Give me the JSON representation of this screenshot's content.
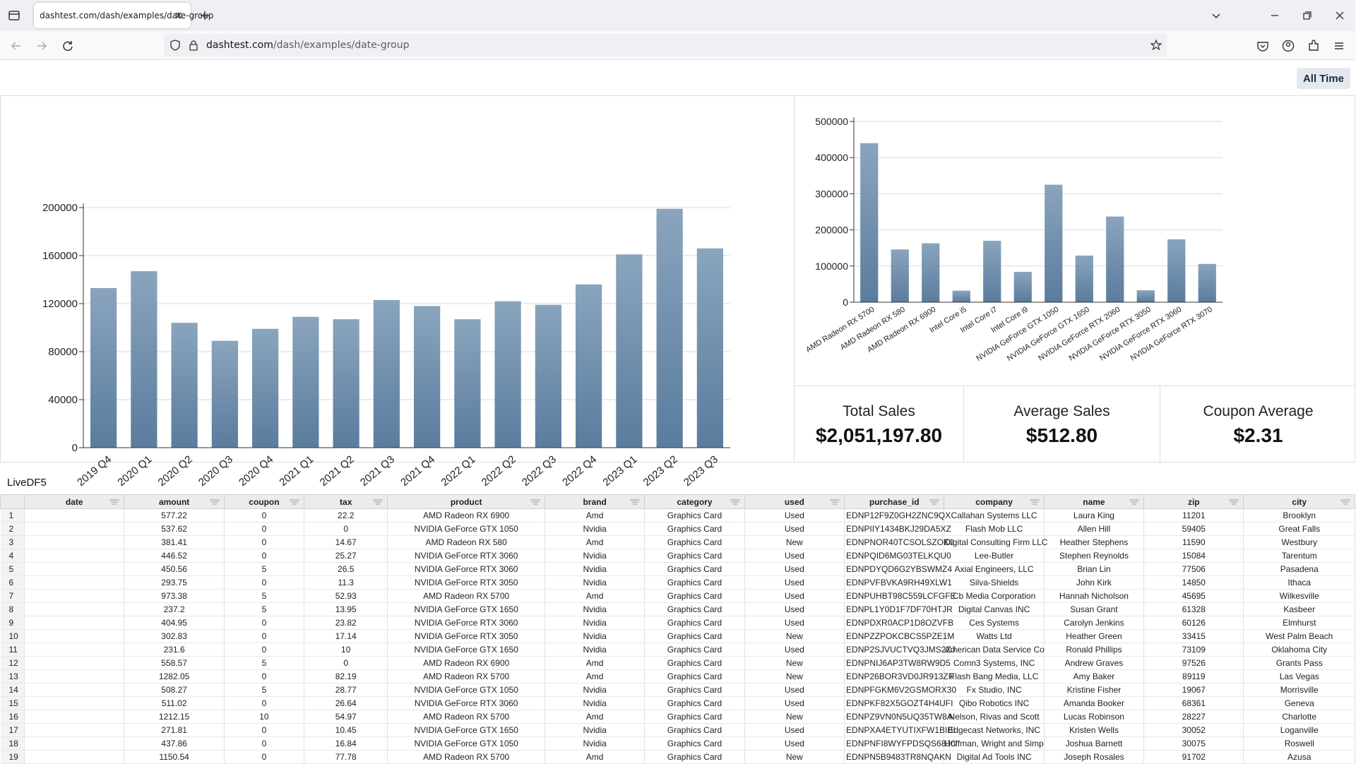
{
  "browser": {
    "tab_title": "dashtest.com/dash/examples/date-group",
    "url_host": "dashtest.com",
    "url_path": "/dash/examples/date-group"
  },
  "controls": {
    "time_range_label": "All Time"
  },
  "chart_data": [
    {
      "type": "bar",
      "title": "",
      "xlabel": "",
      "ylabel": "",
      "categories": [
        "2019 Q4",
        "2020 Q1",
        "2020 Q2",
        "2020 Q3",
        "2020 Q4",
        "2021 Q1",
        "2021 Q2",
        "2021 Q3",
        "2021 Q4",
        "2022 Q1",
        "2022 Q2",
        "2022 Q3",
        "2022 Q4",
        "2023 Q1",
        "2023 Q2",
        "2023 Q3"
      ],
      "values": [
        133000,
        147000,
        104000,
        89000,
        99000,
        109000,
        107000,
        123000,
        118000,
        107000,
        122000,
        119000,
        136000,
        161000,
        199000,
        166000
      ],
      "yticks": [
        0,
        40000,
        80000,
        120000,
        160000,
        200000
      ],
      "ylim": [
        0,
        200000
      ],
      "grid": true,
      "color": "#5a7c9e"
    },
    {
      "type": "bar",
      "title": "",
      "xlabel": "",
      "ylabel": "",
      "categories": [
        "AMD Radeon RX 5700",
        "AMD Radeon RX 580",
        "AMD Radeon RX 6900",
        "Intel Core i5",
        "Intel Core i7",
        "Intel Core i9",
        "NVIDIA GeForce GTX 1050",
        "NVIDIA GeForce GTX 1650",
        "NVIDIA GeForce RTX 2060",
        "NVIDIA GeForce RTX 3050",
        "NVIDIA GeForce RTX 3060",
        "NVIDIA GeForce RTX 3070"
      ],
      "values": [
        440000,
        146000,
        163000,
        32000,
        170000,
        84000,
        325000,
        129000,
        237000,
        33000,
        174000,
        106000
      ],
      "yticks": [
        0,
        100000,
        200000,
        300000,
        400000,
        500000
      ],
      "ylim": [
        0,
        500000
      ],
      "grid": true,
      "color": "#5a7c9e"
    }
  ],
  "kpis": [
    {
      "label": "Total Sales",
      "value": "$2,051,197.80"
    },
    {
      "label": "Average Sales",
      "value": "$512.80"
    },
    {
      "label": "Coupon Average",
      "value": "$2.31"
    }
  ],
  "table": {
    "title": "LiveDF5",
    "columns": [
      "date",
      "amount",
      "coupon",
      "tax",
      "product",
      "brand",
      "category",
      "used",
      "purchase_id",
      "company",
      "name",
      "zip",
      "city"
    ],
    "rows": [
      [
        "1",
        "",
        "577.22",
        "0",
        "22.2",
        "AMD Radeon RX 6900",
        "Amd",
        "Graphics Card",
        "Used",
        "EDNP12F9Z0GH2ZNC9QX",
        "Callahan Systems LLC",
        "Laura King",
        "11201",
        "Brooklyn"
      ],
      [
        "2",
        "",
        "537.62",
        "0",
        "0",
        "NVIDIA GeForce GTX 1050",
        "Nvidia",
        "Graphics Card",
        "Used",
        "EDNPIIY1434BKJ29DA5XZ",
        "Flash Mob LLC",
        "Allen Hill",
        "59405",
        "Great Falls"
      ],
      [
        "3",
        "",
        "381.41",
        "0",
        "14.67",
        "AMD Radeon RX 580",
        "Amd",
        "Graphics Card",
        "New",
        "EDNPNOR40TCSOLSZOK0",
        "Digital Consulting Firm LLC",
        "Heather Stephens",
        "11590",
        "Westbury"
      ],
      [
        "4",
        "",
        "446.52",
        "0",
        "25.27",
        "NVIDIA GeForce RTX 3060",
        "Nvidia",
        "Graphics Card",
        "Used",
        "EDNPQID6MG03TELKQU0",
        "Lee-Butler",
        "Stephen Reynolds",
        "15084",
        "Tarentum"
      ],
      [
        "5",
        "",
        "450.56",
        "5",
        "26.5",
        "NVIDIA GeForce RTX 3060",
        "Nvidia",
        "Graphics Card",
        "Used",
        "EDNPDYQD6G2YBSWMZ4",
        "Axial Engineers, LLC",
        "Brian Lin",
        "77506",
        "Pasadena"
      ],
      [
        "6",
        "",
        "293.75",
        "0",
        "11.3",
        "NVIDIA GeForce RTX 3050",
        "Nvidia",
        "Graphics Card",
        "Used",
        "EDNPVFBVKA9RH49XLW1",
        "Silva-Shields",
        "John Kirk",
        "14850",
        "Ithaca"
      ],
      [
        "7",
        "",
        "973.38",
        "5",
        "52.93",
        "AMD Radeon RX 5700",
        "Amd",
        "Graphics Card",
        "Used",
        "EDNPUHBT98C559LCFGFE",
        "Cb Media Corporation",
        "Hannah Nicholson",
        "45695",
        "Wilkesville"
      ],
      [
        "8",
        "",
        "237.2",
        "5",
        "13.95",
        "NVIDIA GeForce GTX 1650",
        "Nvidia",
        "Graphics Card",
        "Used",
        "EDNPL1Y0D1F7DF70HTJR",
        "Digital Canvas INC",
        "Susan Grant",
        "61328",
        "Kasbeer"
      ],
      [
        "9",
        "",
        "404.95",
        "0",
        "23.82",
        "NVIDIA GeForce RTX 3060",
        "Nvidia",
        "Graphics Card",
        "Used",
        "EDNPDXR0ACP1D8OZVFB",
        "Ces Systems",
        "Carolyn Jenkins",
        "60126",
        "Elmhurst"
      ],
      [
        "10",
        "",
        "302.83",
        "0",
        "17.14",
        "NVIDIA GeForce RTX 3050",
        "Nvidia",
        "Graphics Card",
        "New",
        "EDNPZZPOKCBCS5PZE1M",
        "Watts Ltd",
        "Heather Green",
        "33415",
        "West Palm Beach"
      ],
      [
        "11",
        "",
        "231.6",
        "0",
        "10",
        "NVIDIA GeForce GTX 1650",
        "Nvidia",
        "Graphics Card",
        "Used",
        "EDNP2SJVUCTVQ3JMS2ZJ",
        "American Data Service Co",
        "Ronald Phillips",
        "73109",
        "Oklahoma City"
      ],
      [
        "12",
        "",
        "558.57",
        "5",
        "0",
        "AMD Radeon RX 6900",
        "Amd",
        "Graphics Card",
        "New",
        "EDNPNIJ6AP3TW8RW9D5",
        "Comn3 Systems, INC",
        "Andrew Graves",
        "97526",
        "Grants Pass"
      ],
      [
        "13",
        "",
        "1282.05",
        "0",
        "82.19",
        "AMD Radeon RX 5700",
        "Amd",
        "Graphics Card",
        "New",
        "EDNP26BOR3VD0JR913ZR",
        "Flash Bang Media, LLC",
        "Amy Baker",
        "89119",
        "Las Vegas"
      ],
      [
        "14",
        "",
        "508.27",
        "5",
        "28.77",
        "NVIDIA GeForce GTX 1050",
        "Nvidia",
        "Graphics Card",
        "Used",
        "EDNPFGKM6V2GSMORX30",
        "Fx Studio, INC",
        "Kristine Fisher",
        "19067",
        "Morrisville"
      ],
      [
        "15",
        "",
        "511.02",
        "0",
        "26.64",
        "NVIDIA GeForce RTX 3060",
        "Nvidia",
        "Graphics Card",
        "Used",
        "EDNPKF82X5GOZT4H4UFI",
        "Qibo Robotics INC",
        "Amanda Booker",
        "68361",
        "Geneva"
      ],
      [
        "16",
        "",
        "1212.15",
        "10",
        "54.97",
        "AMD Radeon RX 5700",
        "Amd",
        "Graphics Card",
        "New",
        "EDNPZ9VN0N5UQ35TW8A",
        "Nelson, Rivas and Scott",
        "Lucas Robinson",
        "28227",
        "Charlotte"
      ],
      [
        "17",
        "",
        "271.81",
        "0",
        "10.45",
        "NVIDIA GeForce GTX 1650",
        "Nvidia",
        "Graphics Card",
        "Used",
        "EDNPXA4ETYUTIXFW1BIBI",
        "Edgecast Networks, INC",
        "Kristen Wells",
        "30052",
        "Loganville"
      ],
      [
        "18",
        "",
        "437.86",
        "0",
        "16.84",
        "NVIDIA GeForce GTX 1050",
        "Nvidia",
        "Graphics Card",
        "Used",
        "EDNPNFI8WYFPDSQS68JC",
        "Hoffman, Wright and Simp",
        "Joshua Barnett",
        "30075",
        "Roswell"
      ],
      [
        "19",
        "",
        "1150.54",
        "0",
        "77.78",
        "AMD Radeon RX 5700",
        "Amd",
        "Graphics Card",
        "New",
        "EDNPN5B9483TR8NQAKN",
        "Digital Ad Tools INC",
        "Joseph Rosales",
        "91702",
        "Azusa"
      ]
    ]
  }
}
